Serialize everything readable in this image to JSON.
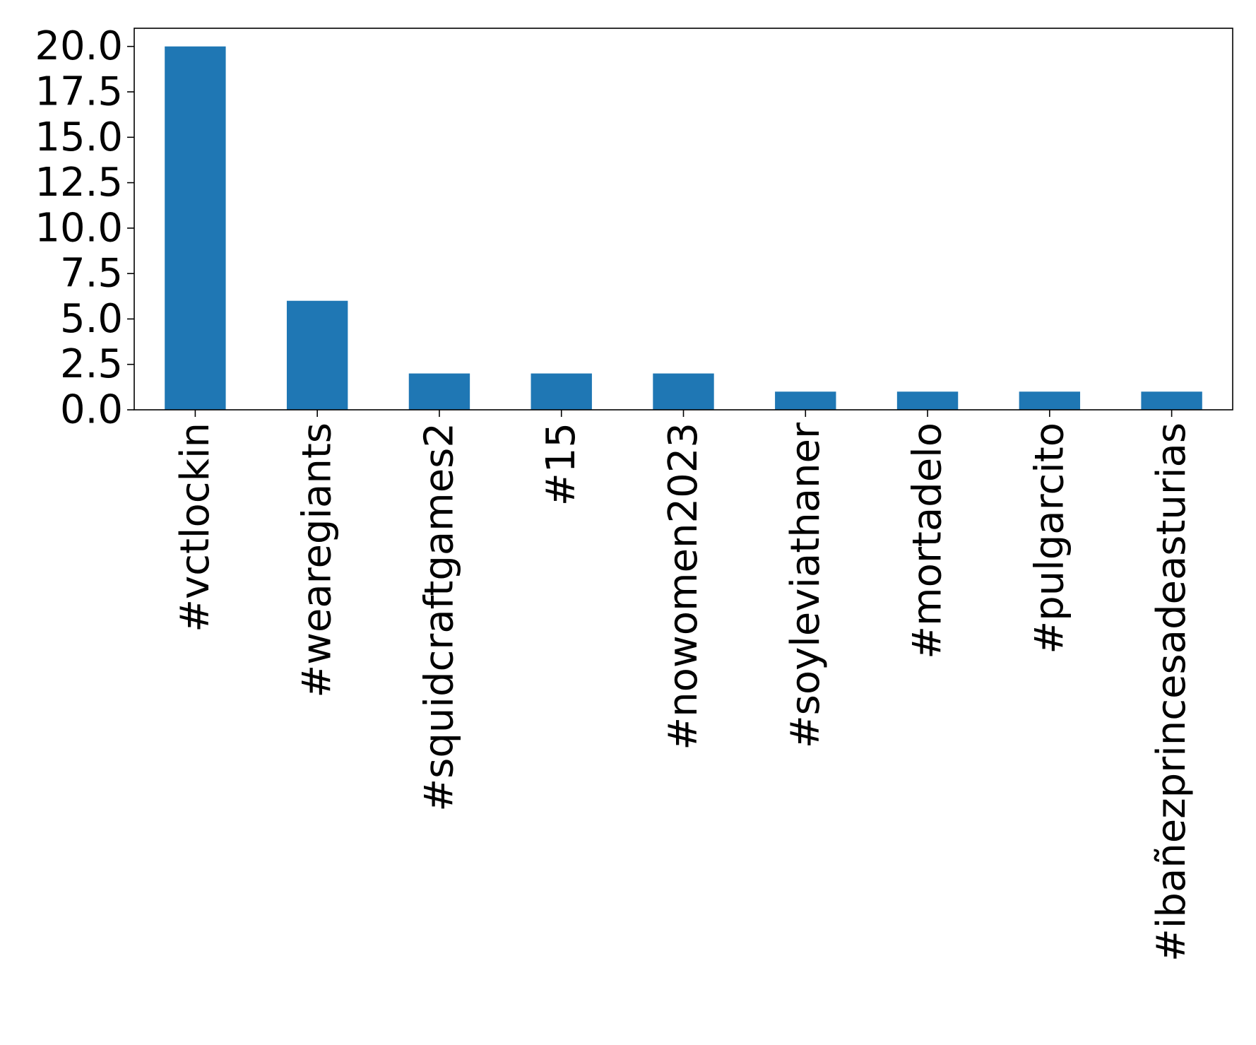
{
  "chart_data": {
    "type": "bar",
    "categories": [
      "#vctlockin",
      "#wearegiants",
      "#squidcraftgames2",
      "#15",
      "#nowomen2023",
      "#soyleviathaner",
      "#mortadelo",
      "#pulgarcito",
      "#ibañezprincesadeasturias"
    ],
    "values": [
      20,
      6,
      2,
      2,
      2,
      1,
      1,
      1,
      1
    ],
    "title": "",
    "xlabel": "",
    "ylabel": "",
    "ylim": [
      0,
      21
    ],
    "yticks": [
      "0.0",
      "2.5",
      "5.0",
      "7.5",
      "10.0",
      "12.5",
      "15.0",
      "17.5",
      "20.0"
    ],
    "grid": false,
    "bar_color": "#1f77b4"
  }
}
